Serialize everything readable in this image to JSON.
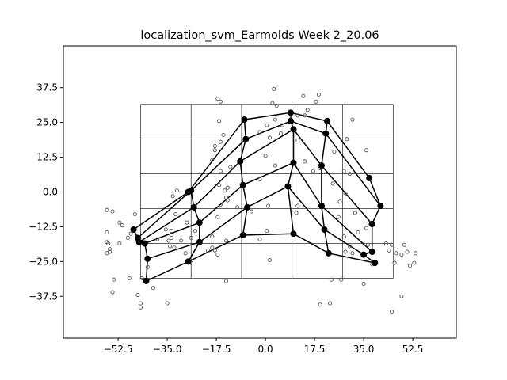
{
  "chart_data": {
    "type": "scatter",
    "title": "localization_svm_Earmolds Week 2_20.06",
    "xlabel": "",
    "ylabel": "",
    "xlim": [
      -72,
      68
    ],
    "ylim": [
      -52.5,
      52.5
    ],
    "xticks": [
      -52.5,
      -35.0,
      -17.5,
      0.0,
      17.5,
      35.0,
      52.5
    ],
    "xtick_labels": [
      "−52.5",
      "−35.0",
      "−17.5",
      "0.0",
      "17.5",
      "35.0",
      "52.5"
    ],
    "yticks": [
      37.5,
      25.0,
      12.5,
      0.0,
      -12.5,
      -25.0,
      -37.5
    ],
    "ytick_labels": [
      "37.5",
      "25.0",
      "12.5",
      "0.0",
      "−12.5",
      "−25.0",
      "−37.5"
    ],
    "grid": {
      "x": [
        -44.5,
        -26.5,
        -8.5,
        9.5,
        27.5,
        45.5
      ],
      "y": [
        31.5,
        19,
        6.5,
        -6,
        -18.5,
        -31
      ]
    },
    "colors": {
      "frame": "#000000",
      "mesh": "#000000",
      "scatter_edge": "#555555"
    },
    "mesh_nodes": [
      [
        -47,
        -13.5
      ],
      [
        -45.5,
        -16.5
      ],
      [
        -45,
        -18
      ],
      [
        -43,
        -18.5
      ],
      [
        -42,
        -24
      ],
      [
        -42.5,
        -32
      ],
      [
        -27.5,
        0
      ],
      [
        -26.5,
        0.5
      ],
      [
        -25.5,
        -5.5
      ],
      [
        -23.5,
        -11
      ],
      [
        -23.5,
        -18
      ],
      [
        -27.5,
        -25
      ],
      [
        -7.5,
        26
      ],
      [
        -7,
        19
      ],
      [
        -9,
        11
      ],
      [
        -8,
        2.5
      ],
      [
        -6.5,
        -5.5
      ],
      [
        -8,
        -15.5
      ],
      [
        9,
        28.5
      ],
      [
        9,
        25.5
      ],
      [
        10,
        22.5
      ],
      [
        10,
        10.5
      ],
      [
        8,
        2
      ],
      [
        10,
        -15
      ],
      [
        22,
        25.5
      ],
      [
        21.5,
        21
      ],
      [
        20,
        9.5
      ],
      [
        20,
        -5
      ],
      [
        21,
        -13.5
      ],
      [
        22.5,
        -22
      ],
      [
        37,
        5
      ],
      [
        41,
        -5
      ],
      [
        38,
        -11.5
      ],
      [
        38,
        -21.5
      ],
      [
        35,
        -22.5
      ],
      [
        39,
        -25.5
      ]
    ],
    "mesh_rows": [
      [
        0,
        6,
        12,
        18,
        24,
        30
      ],
      [
        1,
        7,
        13,
        19,
        25,
        31
      ],
      [
        2,
        8,
        14,
        20,
        26,
        32
      ],
      [
        3,
        9,
        15,
        21,
        27,
        33
      ],
      [
        4,
        10,
        16,
        22,
        28,
        34
      ],
      [
        5,
        11,
        17,
        23,
        29,
        35
      ]
    ],
    "mesh_cols": [
      [
        0,
        1,
        2,
        3,
        4,
        5
      ],
      [
        6,
        7,
        8,
        9,
        10,
        11
      ],
      [
        12,
        13,
        14,
        15,
        16,
        17
      ],
      [
        18,
        19,
        20,
        21,
        22,
        23
      ],
      [
        24,
        25,
        26,
        27,
        28,
        29
      ],
      [
        30,
        31,
        32,
        33,
        34,
        35
      ]
    ],
    "scatter_points": [
      [
        3,
        37
      ],
      [
        -17,
        33.5
      ],
      [
        -16,
        32.5
      ],
      [
        2.5,
        32
      ],
      [
        4,
        31
      ],
      [
        13.5,
        34.5
      ],
      [
        19,
        35
      ],
      [
        18,
        32.5
      ],
      [
        15,
        29.5
      ],
      [
        14,
        27.5
      ],
      [
        11.5,
        27.5
      ],
      [
        -16.5,
        25.5
      ],
      [
        0.5,
        24
      ],
      [
        3.5,
        26
      ],
      [
        31,
        26
      ],
      [
        6,
        24
      ],
      [
        -15,
        20.5
      ],
      [
        -2,
        21.5
      ],
      [
        11.5,
        18.5
      ],
      [
        1.5,
        19.5
      ],
      [
        5.5,
        21
      ],
      [
        29,
        19
      ],
      [
        -16,
        18
      ],
      [
        -18,
        16.5
      ],
      [
        -18,
        15
      ],
      [
        36,
        15
      ],
      [
        24.5,
        14.5
      ],
      [
        0,
        13
      ],
      [
        -19,
        11.5
      ],
      [
        14,
        11
      ],
      [
        19.5,
        8.5
      ],
      [
        -16,
        7.5
      ],
      [
        28,
        7.5
      ],
      [
        17,
        7.5
      ],
      [
        3.5,
        9.5
      ],
      [
        -12.5,
        9
      ],
      [
        30,
        6.5
      ],
      [
        -2,
        4.5
      ],
      [
        -16.5,
        2.5
      ],
      [
        -13.5,
        1.5
      ],
      [
        -14.5,
        0.5
      ],
      [
        -33,
        -1.5
      ],
      [
        24,
        3
      ],
      [
        28.5,
        -0.5
      ],
      [
        -31.5,
        0.5
      ],
      [
        -14,
        -2
      ],
      [
        -13.5,
        -3
      ],
      [
        -16,
        -4.5
      ],
      [
        -10,
        -5.5
      ],
      [
        1,
        -5
      ],
      [
        11.5,
        -5
      ],
      [
        26.5,
        -3.5
      ],
      [
        -5,
        -7
      ],
      [
        11,
        -7.5
      ],
      [
        32,
        -7.5
      ],
      [
        -32,
        -8
      ],
      [
        -56.5,
        -6.5
      ],
      [
        -54.5,
        -7
      ],
      [
        -17,
        -9
      ],
      [
        26,
        -9
      ],
      [
        -28,
        -11
      ],
      [
        -46.5,
        -8
      ],
      [
        -52,
        -11
      ],
      [
        -35.5,
        -13.5
      ],
      [
        -48,
        -15
      ],
      [
        -33.5,
        -14
      ],
      [
        -33.5,
        -16.5
      ],
      [
        -26.5,
        -16.5
      ],
      [
        -34.5,
        -17.5
      ],
      [
        -30,
        -17.5
      ],
      [
        -38.5,
        -17
      ],
      [
        -19,
        -16
      ],
      [
        -2,
        -17
      ],
      [
        -14,
        -17.5
      ],
      [
        -25,
        -14
      ],
      [
        0.5,
        -14
      ],
      [
        28,
        -16
      ],
      [
        33,
        -14.5
      ],
      [
        36,
        -13
      ],
      [
        37,
        -11
      ],
      [
        30,
        -19.5
      ],
      [
        31,
        -22
      ],
      [
        28.5,
        -21.5
      ],
      [
        -34,
        -19.5
      ],
      [
        -32.5,
        -20
      ],
      [
        -19,
        -20
      ],
      [
        -18,
        -21
      ],
      [
        -20.5,
        -21
      ],
      [
        -17,
        -22.5
      ],
      [
        36.5,
        -19
      ],
      [
        45,
        -19
      ],
      [
        43,
        -18.5
      ],
      [
        -28.5,
        -22
      ],
      [
        -26.5,
        -25.5
      ],
      [
        -56.5,
        -18
      ],
      [
        -56,
        -18.5
      ],
      [
        -55.5,
        -20.5
      ],
      [
        -56.5,
        -22
      ],
      [
        -55.5,
        -21.5
      ],
      [
        -51,
        -12
      ],
      [
        -56.5,
        -14.5
      ],
      [
        -52,
        -18.5
      ],
      [
        -49,
        -16.5
      ],
      [
        -42,
        -27
      ],
      [
        -44,
        -31
      ],
      [
        -40,
        -34.5
      ],
      [
        -48.5,
        -31
      ],
      [
        -54,
        -31.5
      ],
      [
        -45.5,
        -37
      ],
      [
        -54.5,
        -36
      ],
      [
        -44.5,
        -40
      ],
      [
        -44.5,
        -41.5
      ],
      [
        -35,
        -40
      ],
      [
        -14,
        -32
      ],
      [
        1.5,
        -24.5
      ],
      [
        27,
        -31.5
      ],
      [
        38,
        -26
      ],
      [
        44,
        -21
      ],
      [
        46.5,
        -22
      ],
      [
        48.5,
        -22.5
      ],
      [
        49.5,
        -19
      ],
      [
        50.5,
        -21.5
      ],
      [
        51.5,
        -26.5
      ],
      [
        53,
        -25.5
      ],
      [
        53.5,
        -22
      ],
      [
        46,
        -25.5
      ],
      [
        48.5,
        -37.5
      ],
      [
        45,
        -43
      ],
      [
        35,
        -33
      ],
      [
        23.5,
        -31.5
      ],
      [
        23,
        -40
      ],
      [
        19.5,
        -40.5
      ]
    ]
  }
}
